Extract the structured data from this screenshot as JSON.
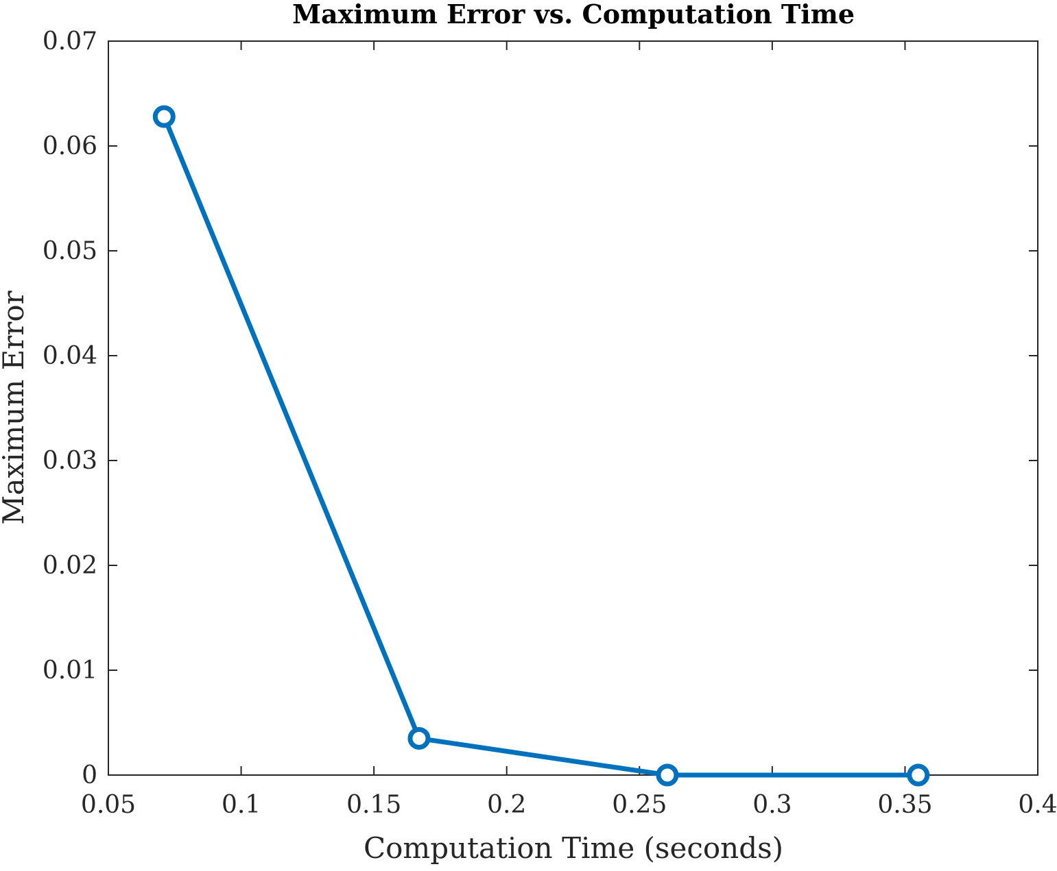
{
  "chart_data": {
    "type": "line",
    "title": "Maximum Error vs. Computation Time",
    "xlabel": "Computation Time (seconds)",
    "ylabel": "Maximum Error",
    "xlim": [
      0.05,
      0.4
    ],
    "ylim": [
      0,
      0.07
    ],
    "x_ticks": [
      "0.05",
      "0.1",
      "0.15",
      "0.2",
      "0.25",
      "0.3",
      "0.35",
      "0.4"
    ],
    "y_ticks": [
      "0",
      "0.01",
      "0.02",
      "0.03",
      "0.04",
      "0.05",
      "0.06",
      "0.07"
    ],
    "grid": false,
    "series": [
      {
        "x": [
          0.071,
          0.167,
          0.2605,
          0.355
        ],
        "y": [
          0.0628,
          0.0035,
          0.0,
          0.0
        ],
        "color": "#0072BD",
        "marker": "circle-open"
      }
    ]
  }
}
